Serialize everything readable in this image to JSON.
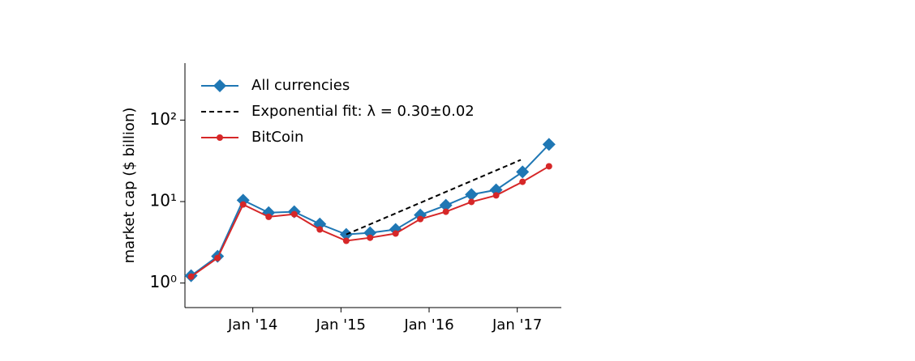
{
  "chart_data": {
    "type": "line",
    "y_label": "market cap ($ billion)",
    "log_y": true,
    "legend": "upper left",
    "xlim": [
      2013.23,
      2017.5
    ],
    "xticks": [
      {
        "value": 2014,
        "label": "Jan '14"
      },
      {
        "value": 2015,
        "label": "Jan '15"
      },
      {
        "value": 2016,
        "label": "Jan '16"
      },
      {
        "value": 2017,
        "label": "Jan '17"
      }
    ],
    "ylim": [
      0.5,
      500
    ],
    "yticks": [
      {
        "value": 1,
        "label": "10⁰"
      },
      {
        "value": 10,
        "label": "10¹"
      },
      {
        "value": 100,
        "label": "10²"
      }
    ],
    "series": [
      {
        "name": "All currencies",
        "color": "#1f77b4",
        "marker": "diamond",
        "style": "solid",
        "x": [
          2013.3,
          2013.6,
          2013.89,
          2014.18,
          2014.47,
          2014.76,
          2015.06,
          2015.33,
          2015.62,
          2015.9,
          2016.19,
          2016.48,
          2016.76,
          2017.06,
          2017.36
        ],
        "values": [
          1.23,
          2.13,
          10.4,
          7.3,
          7.5,
          5.3,
          3.95,
          4.14,
          4.54,
          6.85,
          9.0,
          12.2,
          13.9,
          23.1,
          50.3
        ]
      },
      {
        "name": "Exponential fit: λ = 0.30±0.02",
        "color": "#000000",
        "marker": "none",
        "style": "dashed",
        "x": [
          2015.06,
          2017.04
        ],
        "values": [
          3.95,
          32.5
        ]
      },
      {
        "name": "BitCoin",
        "color": "#d62728",
        "marker": "circle",
        "style": "solid",
        "x": [
          2013.3,
          2013.6,
          2013.89,
          2014.18,
          2014.47,
          2014.76,
          2015.06,
          2015.33,
          2015.62,
          2015.9,
          2016.19,
          2016.48,
          2016.76,
          2017.06,
          2017.36
        ],
        "values": [
          1.2,
          2.03,
          9.2,
          6.5,
          7.0,
          4.54,
          3.3,
          3.6,
          4.05,
          6.1,
          7.5,
          9.9,
          11.9,
          17.5,
          27.1
        ]
      }
    ]
  }
}
